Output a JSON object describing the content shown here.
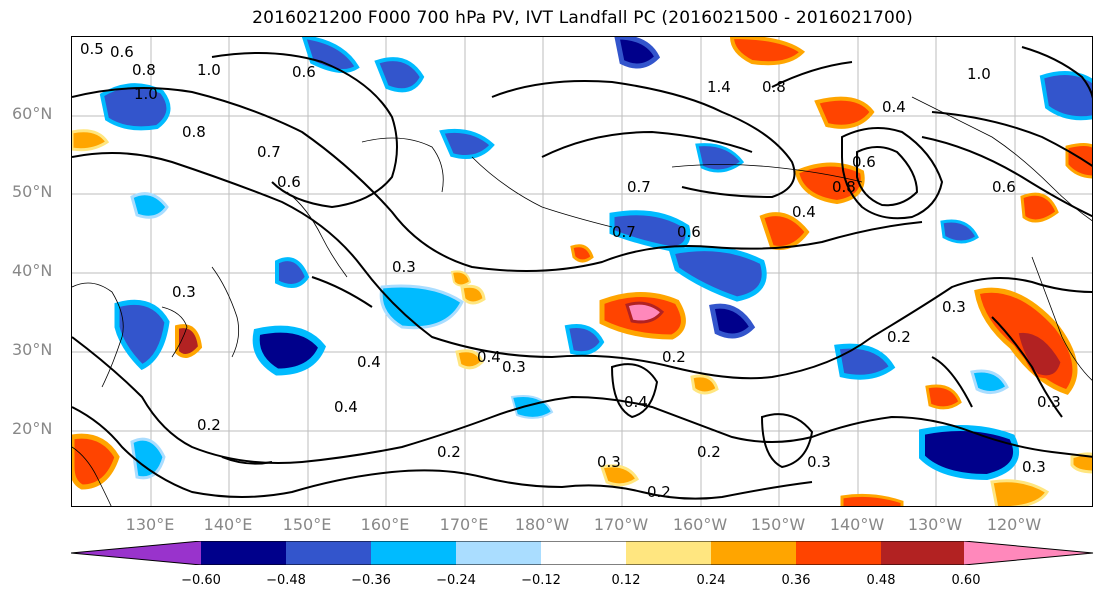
{
  "title": "2016021200 F000 700 hPa PV, IVT Landfall PC (2016021500 - 2016021700)",
  "lat_labels": [
    "60°N",
    "50°N",
    "40°N",
    "30°N",
    "20°N"
  ],
  "lon_labels": [
    "130°E",
    "140°E",
    "150°E",
    "160°E",
    "170°E",
    "180°W",
    "170°W",
    "160°W",
    "150°W",
    "140°W",
    "130°W",
    "120°W"
  ],
  "contour_labels": [
    "0.5",
    "0.6",
    "1.0",
    "0.8",
    "1.0",
    "0.8",
    "0.6",
    "1.4",
    "0.8",
    "0.4",
    "1.0",
    "0.7",
    "0.6",
    "0.7",
    "0.6",
    "0.7",
    "0.6",
    "0.4",
    "0.8",
    "0.6",
    "0.3",
    "0.3",
    "0.4",
    "0.3",
    "0.2",
    "0.4",
    "0.4",
    "0.3",
    "0.2",
    "0.2",
    "0.4",
    "0.2",
    "0.3",
    "0.2",
    "0.3",
    "0.3",
    "0.2",
    "0.3"
  ],
  "colorbar": {
    "colors": [
      "#9933cc",
      "#00008b",
      "#3355cc",
      "#00bbff",
      "#aaddff",
      "#ffffff",
      "#ffe680",
      "#ffa500",
      "#ff4400",
      "#b22222",
      "#ff88bb"
    ],
    "ticks": [
      "−0.60",
      "−0.48",
      "−0.36",
      "−0.24",
      "−0.12",
      "0.12",
      "0.24",
      "0.36",
      "0.48",
      "0.60"
    ]
  }
}
